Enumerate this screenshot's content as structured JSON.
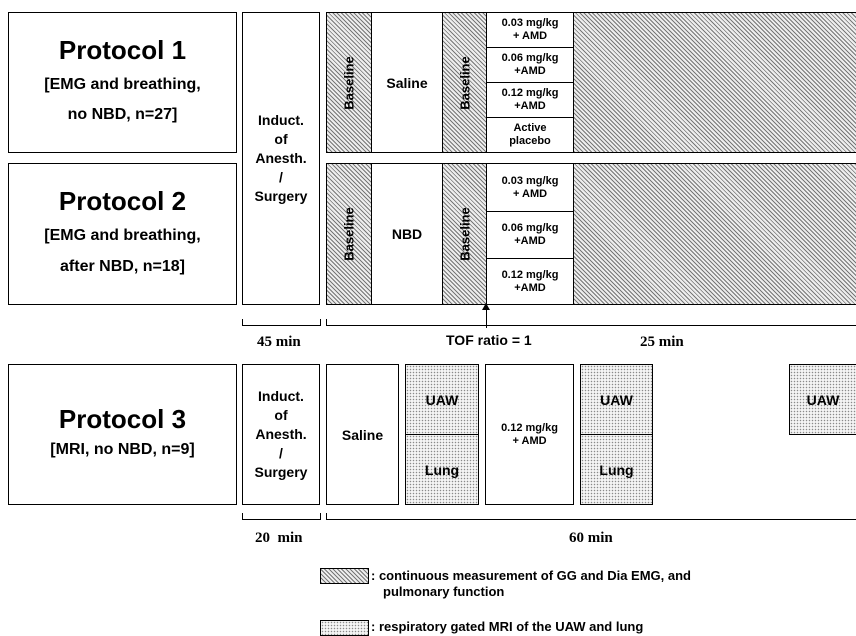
{
  "protocol1": {
    "title": "Protocol 1",
    "desc_line1": "[EMG and breathing,",
    "desc_line2": "no NBD, n=27]"
  },
  "protocol2": {
    "title": "Protocol 2",
    "desc_line1": "[EMG and breathing,",
    "desc_line2": "after NBD, n=18]"
  },
  "protocol3": {
    "title": "Protocol 3",
    "desc_line1": "[MRI, no NBD, n=9]"
  },
  "induction": {
    "line1": "Induct.",
    "line2": "of",
    "line3": "Anesth.",
    "line4": "/",
    "line5": "Surgery"
  },
  "baseline": "Baseline",
  "saline": "Saline",
  "nbd": "NBD",
  "doses_p1": [
    {
      "line1": "0.03 mg/kg",
      "line2": "+ AMD"
    },
    {
      "line1": "0.06 mg/kg",
      "line2": "+AMD"
    },
    {
      "line1": "0.12 mg/kg",
      "line2": "+AMD"
    },
    {
      "line1": "Active",
      "line2": "placebo"
    }
  ],
  "doses_p2": [
    {
      "line1": "0.03 mg/kg",
      "line2": "+ AMD"
    },
    {
      "line1": "0.06 mg/kg",
      "line2": "+AMD"
    },
    {
      "line1": "0.12 mg/kg",
      "line2": "+AMD"
    }
  ],
  "p3_dose": {
    "line1": "0.12 mg/kg",
    "line2": "+ AMD"
  },
  "uaw": "UAW",
  "lung": "Lung",
  "tof": "TOF ratio = 1",
  "times": {
    "t45": "45 min",
    "t25": "25 min",
    "t20": "20  min",
    "t60": "60 min"
  },
  "legend": {
    "hatch_line1": ": continuous measurement of GG and Dia EMG, and",
    "hatch_line2": "pulmonary function",
    "dots_line1": ": respiratory gated MRI of the UAW and lung"
  }
}
